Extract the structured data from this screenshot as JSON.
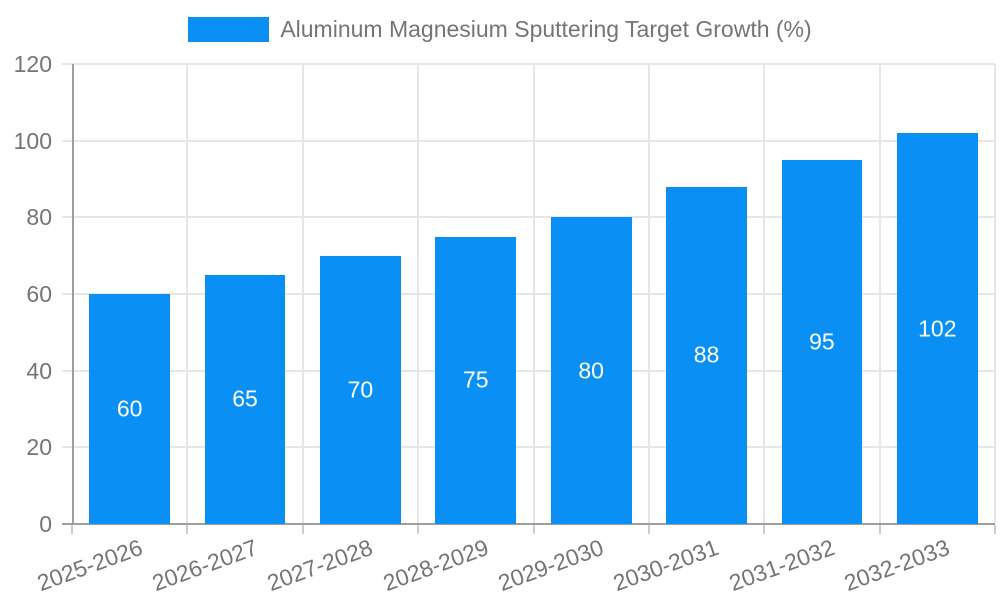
{
  "chart_data": {
    "type": "bar",
    "title": "Aluminum Magnesium Sputtering Target Growth (%)",
    "categories": [
      "2025-2026",
      "2026-2027",
      "2027-2028",
      "2028-2029",
      "2029-2030",
      "2030-2031",
      "2031-2032",
      "2032-2033"
    ],
    "values": [
      60,
      65,
      70,
      75,
      80,
      88,
      95,
      102
    ],
    "xlabel": "",
    "ylabel": "",
    "ylim": [
      0,
      120
    ],
    "yticks": [
      0,
      20,
      40,
      60,
      80,
      100,
      120
    ],
    "grid": true,
    "legend_position": "top-center",
    "bar_color": "#0a90f5",
    "value_label_color": "#ffffff",
    "axis_text_color": "#757575",
    "gridline_color": "#e6e6e6",
    "axis_line_color": "#9e9e9e",
    "tick_color": "#cccccc",
    "bar_width_fraction": 0.7
  }
}
